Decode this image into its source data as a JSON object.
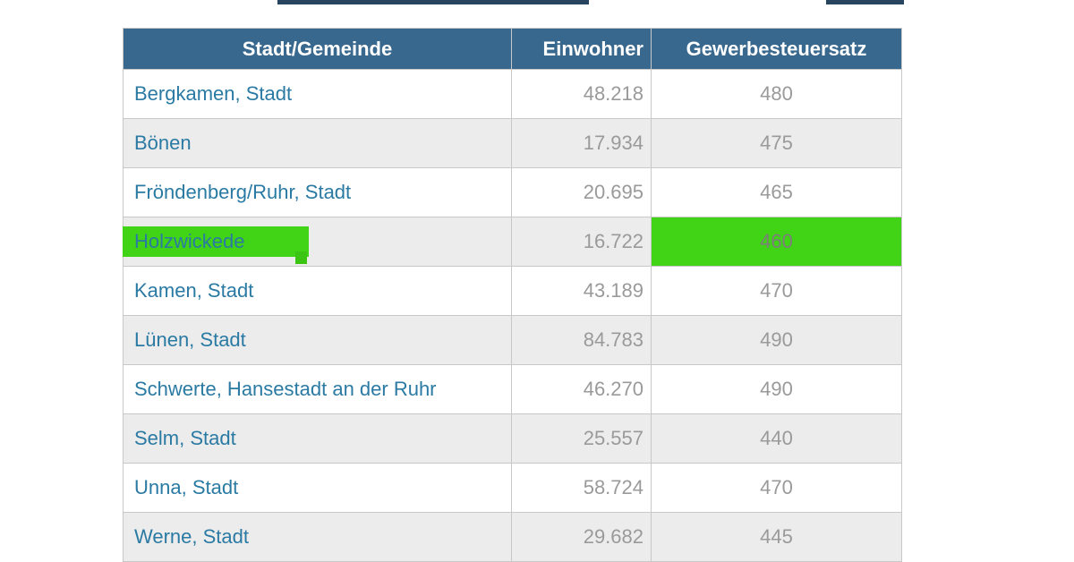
{
  "table": {
    "headers": [
      "Stadt/Gemeinde",
      "Einwohner",
      "Gewerbesteuersatz"
    ],
    "rows": [
      {
        "city": "Bergkamen, Stadt",
        "einwohner": "48.218",
        "steuersatz": "480"
      },
      {
        "city": "Bönen",
        "einwohner": "17.934",
        "steuersatz": "475"
      },
      {
        "city": "Fröndenberg/Ruhr, Stadt",
        "einwohner": "20.695",
        "steuersatz": "465"
      },
      {
        "city": "Holzwickede",
        "einwohner": "16.722",
        "steuersatz": "460"
      },
      {
        "city": "Kamen, Stadt",
        "einwohner": "43.189",
        "steuersatz": "470"
      },
      {
        "city": "Lünen, Stadt",
        "einwohner": "84.783",
        "steuersatz": "490"
      },
      {
        "city": "Schwerte, Hansestadt an der Ruhr",
        "einwohner": "46.270",
        "steuersatz": "490"
      },
      {
        "city": "Selm, Stadt",
        "einwohner": "25.557",
        "steuersatz": "440"
      },
      {
        "city": "Unna, Stadt",
        "einwohner": "58.724",
        "steuersatz": "470"
      },
      {
        "city": "Werne, Stadt",
        "einwohner": "29.682",
        "steuersatz": "445"
      }
    ],
    "highlighted_city": "Holzwickede",
    "highlight_color": "#41d316"
  },
  "colors": {
    "header_bg": "#39688e",
    "header_text": "#ffffff",
    "link_text": "#2a7aa3",
    "number_text": "#9a9a9a",
    "row_alt_bg": "#ececec",
    "border": "#c8c8c8",
    "highlight_green": "#41d316"
  }
}
